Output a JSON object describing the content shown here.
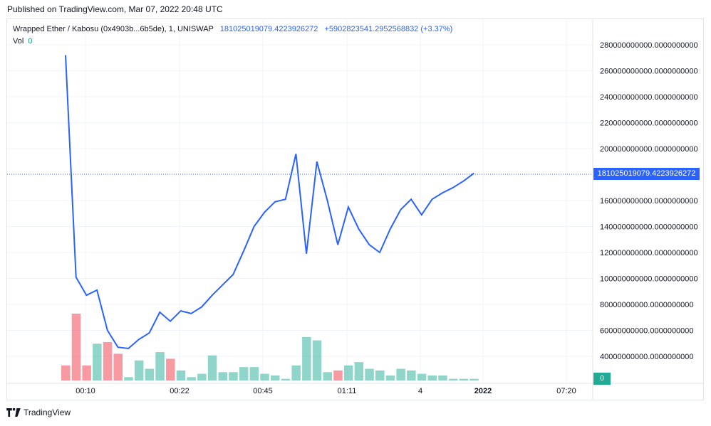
{
  "header": {
    "published": "Published on TradingView.com, Mar 07, 2022 20:48 UTC"
  },
  "legend": {
    "symbol": "Wrapped Ether / Kabosu (0x4903b...6b5de), 1, UNISWAP",
    "last_price": "181025019079.4223926272",
    "change": "+5902823541.2952568832 (+3.37%)",
    "vol_label": "Vol",
    "vol_value": "0"
  },
  "price_tag": "181025019079.4223926272",
  "vol_tag": "0",
  "footer": {
    "brand": "TradingView"
  },
  "colors": {
    "line": "#2962ff",
    "vol_up": "#22ab94",
    "vol_down": "#f23645",
    "grid": "#f0f3fa"
  },
  "chart_data": {
    "type": "line",
    "y_ticks": [
      {
        "value": 280000000000,
        "label": "280000000000.0000000000"
      },
      {
        "value": 260000000000,
        "label": "260000000000.0000000000"
      },
      {
        "value": 240000000000,
        "label": "240000000000.0000000000"
      },
      {
        "value": 220000000000,
        "label": "220000000000.0000000000"
      },
      {
        "value": 200000000000,
        "label": "200000000000.0000000000"
      },
      {
        "value": 160000000000,
        "label": "160000000000.0000000000"
      },
      {
        "value": 140000000000,
        "label": "140000000000.0000000000"
      },
      {
        "value": 120000000000,
        "label": "120000000000.0000000000"
      },
      {
        "value": 100000000000,
        "label": "100000000000.0000000000"
      },
      {
        "value": 80000000000,
        "label": "80000000000.0000000000"
      },
      {
        "value": 60000000000,
        "label": "60000000000.0000000000"
      },
      {
        "value": 40000000000,
        "label": "40000000000.0000000000"
      }
    ],
    "x_tick_labels": [
      "00:10",
      "00:22",
      "00:45",
      "01:11",
      "4",
      "2022",
      "07:20"
    ],
    "grid": true,
    "series": [
      {
        "values": [
          272000000000,
          101000000000,
          87000000000,
          91000000000,
          60000000000,
          47000000000,
          46000000000,
          53000000000,
          58000000000,
          74000000000,
          67000000000,
          75000000000,
          73000000000,
          78000000000,
          87000000000,
          95000000000,
          103000000000,
          121000000000,
          140000000000,
          151000000000,
          159000000000,
          161000000000,
          196000000000,
          119000000000,
          190000000000,
          160000000000,
          126000000000,
          155000000000,
          138000000000,
          126000000000,
          120000000000,
          138000000000,
          153000000000,
          161000000000,
          149000000000,
          161000000000,
          166000000000,
          170000000000,
          175000000000,
          181025019079
        ]
      }
    ],
    "volume": {
      "values": [
        9,
        40,
        9,
        22,
        23,
        16,
        2,
        12,
        7,
        17,
        13,
        6,
        2,
        4,
        15,
        5,
        5,
        8,
        8,
        4,
        3,
        1,
        9,
        26,
        24,
        5,
        6,
        9,
        11,
        7,
        6,
        3,
        7,
        6,
        4,
        3,
        3,
        1,
        1,
        1
      ],
      "direction": [
        "down",
        "down",
        "down",
        "up",
        "down",
        "down",
        "up",
        "up",
        "up",
        "up",
        "down",
        "up",
        "up",
        "up",
        "up",
        "up",
        "up",
        "up",
        "up",
        "up",
        "up",
        "up",
        "up",
        "up",
        "up",
        "up",
        "down",
        "up",
        "up",
        "up",
        "up",
        "up",
        "up",
        "up",
        "up",
        "up",
        "up",
        "up",
        "up",
        "up"
      ]
    }
  }
}
